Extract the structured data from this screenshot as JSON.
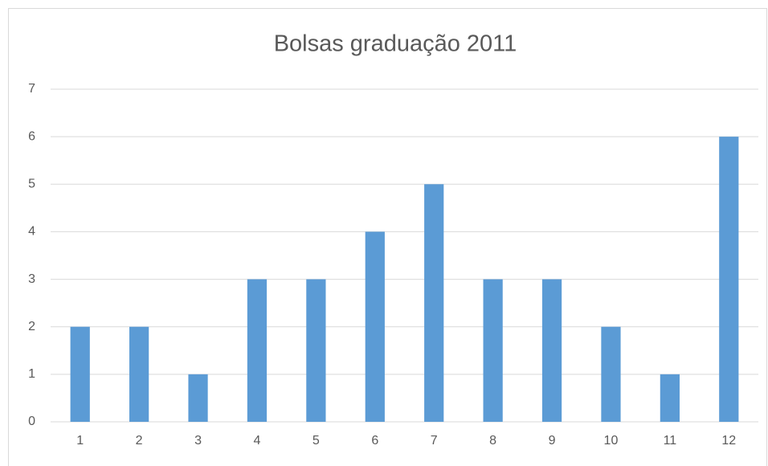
{
  "chart_data": {
    "type": "bar",
    "title": "Bolsas graduação 2011",
    "categories": [
      "1",
      "2",
      "3",
      "4",
      "5",
      "6",
      "7",
      "8",
      "9",
      "10",
      "11",
      "12"
    ],
    "values": [
      2,
      2,
      1,
      3,
      3,
      4,
      5,
      3,
      3,
      2,
      1,
      6
    ],
    "color": "#5b9bd5",
    "ylim": [
      0,
      7
    ],
    "yticks": [
      0,
      1,
      2,
      3,
      4,
      5,
      6,
      7
    ],
    "grid": true
  }
}
